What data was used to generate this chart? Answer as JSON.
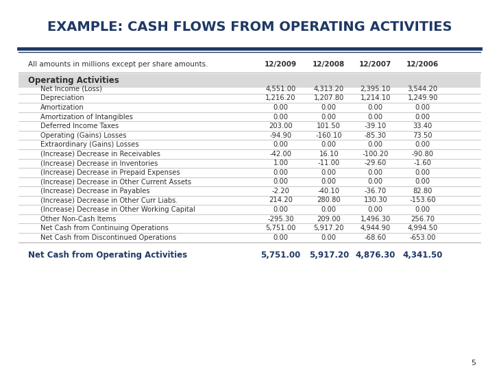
{
  "title": "EXAMPLE: CASH FLOWS FROM OPERATING ACTIVITIES",
  "title_color": "#1F3864",
  "header_note": "All amounts in millions except per share amounts.",
  "columns": [
    "12/2009",
    "12/2008",
    "12/2007",
    "12/2006"
  ],
  "section_header": "Operating Activities",
  "rows": [
    {
      "label": "Net Income (Loss)",
      "values": [
        "4,551.00",
        "4,313.20",
        "2,395.10",
        "3,544.20"
      ]
    },
    {
      "label": "Depreciation",
      "values": [
        "1,216.20",
        "1,207.80",
        "1,214.10",
        "1,249.90"
      ]
    },
    {
      "label": "Amortization",
      "values": [
        "0.00",
        "0.00",
        "0.00",
        "0.00"
      ]
    },
    {
      "label": "Amortization of Intangibles",
      "values": [
        "0.00",
        "0.00",
        "0.00",
        "0.00"
      ]
    },
    {
      "label": "Deferred Income Taxes",
      "values": [
        "203.00",
        "101.50",
        "-39.10",
        "33.40"
      ]
    },
    {
      "label": "Operating (Gains) Losses",
      "values": [
        "-94.90",
        "-160.10",
        "-85.30",
        "73.50"
      ]
    },
    {
      "label": "Extraordinary (Gains) Losses",
      "values": [
        "0.00",
        "0.00",
        "0.00",
        "0.00"
      ]
    },
    {
      "label": "(Increase) Decrease in Receivables",
      "values": [
        "-42.00",
        "16.10",
        "-100.20",
        "-90.80"
      ]
    },
    {
      "label": "(Increase) Decrease in Inventories",
      "values": [
        "1.00",
        "-11.00",
        "-29.60",
        "-1.60"
      ]
    },
    {
      "label": "(Increase) Decrease in Prepaid Expenses",
      "values": [
        "0.00",
        "0.00",
        "0.00",
        "0.00"
      ]
    },
    {
      "label": "(Increase) Decrease in Other Current Assets",
      "values": [
        "0.00",
        "0.00",
        "0.00",
        "0.00"
      ]
    },
    {
      "label": "(Increase) Decrease in Payables",
      "values": [
        "-2.20",
        "-40.10",
        "-36.70",
        "82.80"
      ]
    },
    {
      "label": "(Increase) Decrease in Other Curr Liabs.",
      "values": [
        "214.20",
        "280.80",
        "130.30",
        "-153.60"
      ]
    },
    {
      "label": "(Increase) Decrease in Other Working Capital",
      "values": [
        "0.00",
        "0.00",
        "0.00",
        "0.00"
      ]
    },
    {
      "label": "Other Non-Cash Items",
      "values": [
        "-295.30",
        "209.00",
        "1,496.30",
        "256.70"
      ]
    },
    {
      "label": "Net Cash from Continuing Operations",
      "values": [
        "5,751.00",
        "5,917.20",
        "4,944.90",
        "4,994.50"
      ]
    },
    {
      "label": "Net Cash from Discontinued Operations",
      "values": [
        "0.00",
        "0.00",
        "-68.60",
        "-653.00"
      ]
    }
  ],
  "footer_label": "Net Cash from Operating Activities",
  "footer_values": [
    "5,751.00",
    "5,917.20",
    "4,876.30",
    "4,341.50"
  ],
  "bg_color": "#FFFFFF",
  "section_bg_color": "#D9D9D9",
  "divider_color": "#B0B0B0",
  "thick_divider_color": "#1F3864",
  "text_color": "#2E2E2E",
  "header_text_color": "#2E2E2E",
  "footer_text_color": "#1F3864",
  "page_number": "5"
}
